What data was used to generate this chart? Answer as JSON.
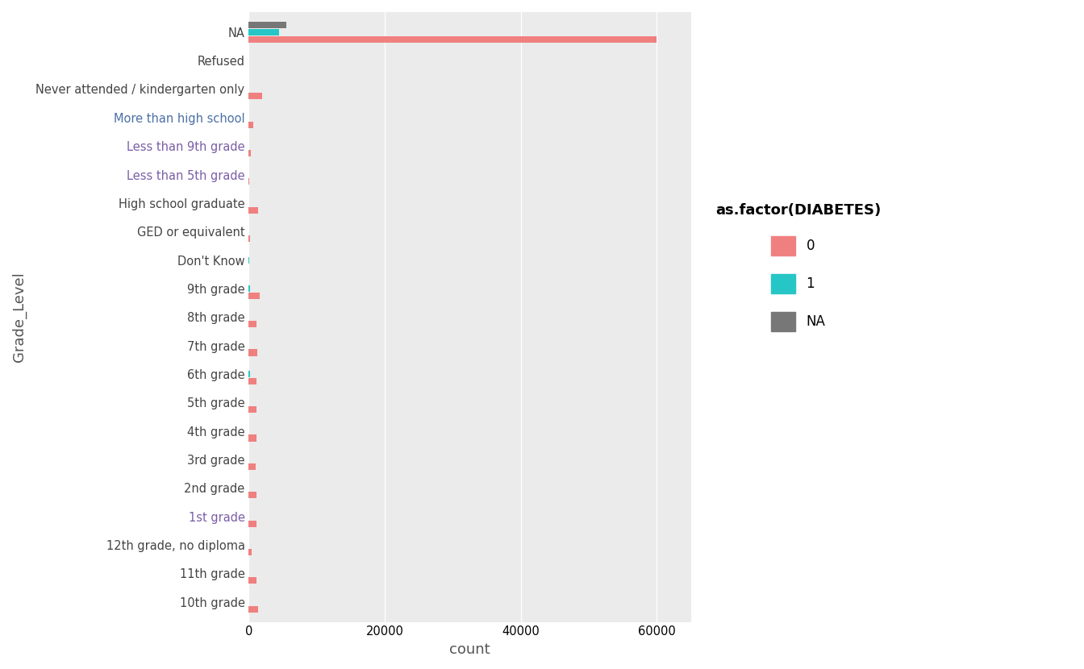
{
  "categories": [
    "10th grade",
    "11th grade",
    "12th grade, no diploma",
    "1st grade",
    "2nd grade",
    "3rd grade",
    "4th grade",
    "5th grade",
    "6th grade",
    "7th grade",
    "8th grade",
    "9th grade",
    "Don't Know",
    "GED or equivalent",
    "High school graduate",
    "Less than 5th grade",
    "Less than 9th grade",
    "More than high school",
    "Never attended / kindergarten only",
    "Refused",
    "NA"
  ],
  "values_0": [
    1400,
    1100,
    400,
    1100,
    1100,
    1000,
    1100,
    1100,
    1200,
    1300,
    1200,
    1600,
    0,
    200,
    1400,
    100,
    300,
    700,
    2000,
    0,
    60000
  ],
  "values_1": [
    0,
    0,
    0,
    0,
    0,
    0,
    0,
    0,
    150,
    0,
    0,
    200,
    50,
    0,
    0,
    0,
    0,
    0,
    0,
    0,
    4500
  ],
  "values_na": [
    0,
    0,
    0,
    0,
    0,
    0,
    0,
    0,
    0,
    0,
    0,
    0,
    0,
    0,
    0,
    0,
    0,
    0,
    0,
    0,
    5500
  ],
  "color_0": "#F08080",
  "color_1": "#26C6C6",
  "color_na": "#777777",
  "legend_title": "as.factor(DIABETES)",
  "xlabel": "count",
  "ylabel": "Grade_Level",
  "bg_color": "#EBEBEB",
  "purple_labels": [
    "Less than 9th grade",
    "Less than 5th grade",
    "1st grade"
  ],
  "blue_labels": [
    "More than high school"
  ],
  "bar_height": 0.75
}
